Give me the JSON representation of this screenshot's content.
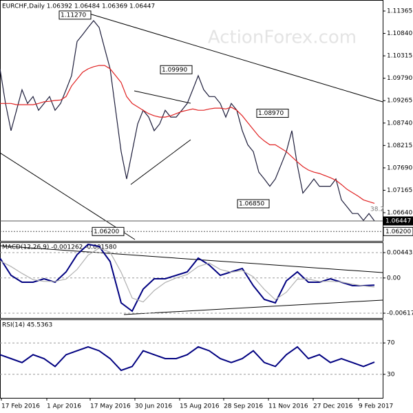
{
  "chart_data": [
    {
      "type": "line",
      "title": "EURCHF,Daily 1.06392 1.06484 1.06369 1.06447",
      "watermark": "ActionForex.com",
      "x": [
        0,
        4,
        8,
        12,
        16,
        20,
        24,
        28,
        32,
        36,
        40,
        44,
        48,
        52,
        56,
        60,
        64,
        68,
        72,
        76,
        80,
        84,
        88,
        92,
        96,
        100,
        104,
        108,
        112,
        116,
        120,
        124,
        128,
        132,
        136,
        140,
        144,
        148,
        152,
        156,
        160,
        164,
        168,
        172,
        176,
        180,
        184,
        188,
        192,
        196,
        200,
        204,
        208,
        212,
        216,
        220,
        224,
        228,
        232,
        236,
        240,
        244,
        248,
        252,
        256,
        260,
        264,
        268,
        272
      ],
      "xlim": [
        0,
        278
      ],
      "ylim": [
        1.05979,
        1.11623
      ],
      "yticks": [
        1.11365,
        {
          "value": 1.1084,
          "label": "1.10840"
        },
        1.10315,
        {
          "value": 1.0979,
          "label": "1.09790"
        },
        1.09265,
        {
          "value": 1.0874,
          "label": "1.08740"
        },
        1.08215,
        {
          "value": 1.0769,
          "label": "1.07690"
        },
        1.07165,
        {
          "value": 1.0664,
          "label": "1.06640"
        }
      ],
      "series": [
        {
          "color": "#1c1c3a",
          "values": [
            1.1001,
            1.092,
            1.0856,
            1.0904,
            1.0952,
            1.092,
            1.0936,
            1.0904,
            1.092,
            1.0936,
            1.0904,
            1.092,
            1.0952,
            1.0985,
            1.1065,
            1.1081,
            1.1098,
            1.1114,
            1.1098,
            1.1049,
            1.1001,
            1.0904,
            1.0807,
            1.0743,
            1.0807,
            1.0872,
            1.0904,
            1.0888,
            1.0856,
            1.0872,
            1.0904,
            1.0888,
            1.0888,
            1.0904,
            1.092,
            1.0952,
            1.0985,
            1.0952,
            1.0936,
            1.0936,
            1.092,
            1.0888,
            1.092,
            1.0904,
            1.0856,
            1.0823,
            1.0807,
            1.0759,
            1.0743,
            1.0726,
            1.0743,
            1.0775,
            1.0807,
            1.0856,
            1.0775,
            1.071,
            1.0726,
            1.0743,
            1.0726,
            1.0726,
            1.0726,
            1.0743,
            1.0694,
            1.0678,
            1.0662,
            1.0662,
            1.0646,
            1.0662,
            1.06447
          ]
        },
        {
          "color": "#e02020",
          "values": [
            1.092,
            1.092,
            1.092,
            1.0917,
            1.0917,
            1.0917,
            1.0917,
            1.092,
            1.0924,
            1.0925,
            1.0927,
            1.0928,
            1.0936,
            1.0961,
            1.0977,
            1.0993,
            1.1001,
            1.1006,
            1.1009,
            1.1009,
            1.1001,
            1.0985,
            1.0969,
            1.0936,
            1.092,
            1.0912,
            1.0904,
            1.0896,
            1.0891,
            1.0888,
            1.0888,
            1.0891,
            1.0896,
            1.0901,
            1.0904,
            1.0907,
            1.0904,
            1.0904,
            1.0907,
            1.0909,
            1.0909,
            1.0907,
            1.0911,
            1.0904,
            1.0891,
            1.0875,
            1.0859,
            1.0843,
            1.0832,
            1.0823,
            1.0823,
            1.0815,
            1.0807,
            1.0795,
            1.0783,
            1.0772,
            1.0764,
            1.0759,
            1.0756,
            1.0751,
            1.0746,
            1.074,
            1.073,
            1.0719,
            1.0711,
            1.0703,
            1.0694,
            1.069,
            1.0686
          ]
        }
      ],
      "annotations": [
        {
          "label": "1.11270",
          "value": 1.1127
        },
        {
          "label": "1.09990",
          "value": 1.0999
        },
        {
          "label": "1.08970",
          "value": 1.0897
        },
        {
          "label": "1.06850",
          "value": 1.0685
        },
        {
          "label": "1.06200",
          "value": 1.062
        },
        {
          "label": "38.2",
          "value": 1.0664
        }
      ],
      "price_labels": [
        {
          "value": 1.06447,
          "label": "1.06447"
        },
        {
          "value": 1.062,
          "label": "1.06200"
        }
      ]
    },
    {
      "type": "line",
      "title": "MACD(12,26,9) -0.001262 -0.001580",
      "x": [
        0,
        8,
        16,
        24,
        32,
        40,
        48,
        56,
        64,
        72,
        80,
        88,
        96,
        104,
        112,
        120,
        128,
        136,
        144,
        152,
        160,
        168,
        176,
        184,
        192,
        200,
        208,
        216,
        224,
        232,
        240,
        248,
        256,
        264,
        272
      ],
      "xlim": [
        0,
        278
      ],
      "ylim": [
        -0.00701,
        0.00624
      ],
      "yticks": [
        0.004435,
        {
          "value": 0,
          "label": "0.00"
        },
        -0.00617
      ],
      "series": [
        {
          "color": "#000080",
          "values": [
            0.00347,
            0.00046,
            -0.00075,
            -0.00075,
            -0.00014,
            -0.00075,
            0.00106,
            0.00408,
            0.00588,
            0.00552,
            0.00287,
            -0.00436,
            -0.00581,
            -0.00195,
            -0.00014,
            -0.00014,
            0.00046,
            0.00106,
            0.00347,
            0.00227,
            0.00046,
            0.00106,
            0.00166,
            -0.00135,
            -0.00376,
            -0.00436,
            -0.00051,
            0.00106,
            -0.00075,
            -0.00075,
            -0.00014,
            -0.00075,
            -0.00135,
            -0.00135,
            -0.00126
          ]
        },
        {
          "color": "#b0b0b0",
          "values": [
            0.003,
            0.002,
            0.0008,
            -0.0003,
            -0.0006,
            -0.0006,
            -0.0002,
            0.0015,
            0.004,
            0.0052,
            0.0045,
            0.001,
            -0.0035,
            -0.0042,
            -0.0022,
            -0.0008,
            0,
            0.0006,
            0.002,
            0.0026,
            0.0015,
            0.001,
            0.0013,
            0.0002,
            -0.002,
            -0.0038,
            -0.0025,
            -0.0002,
            -0.0002,
            -0.0006,
            -0.0006,
            -0.0007,
            -0.0011,
            -0.0014,
            -0.00158
          ]
        }
      ]
    },
    {
      "type": "line",
      "title": "RSI(14) 45.5363",
      "x": [
        0,
        8,
        16,
        24,
        32,
        40,
        48,
        56,
        64,
        72,
        80,
        88,
        96,
        104,
        112,
        120,
        128,
        136,
        144,
        152,
        160,
        168,
        176,
        184,
        192,
        200,
        208,
        216,
        224,
        232,
        240,
        248,
        256,
        264,
        272
      ],
      "xlim": [
        0,
        278
      ],
      "ylim": [
        0,
        100
      ],
      "yticks": [
        70,
        30
      ],
      "xticks": [
        {
          "value": 1,
          "label": "17 Feb 2016"
        },
        {
          "value": 34,
          "label": "1 Apr 2016"
        },
        {
          "value": 65.5,
          "label": "17 May 2016"
        },
        {
          "value": 98,
          "label": "30 Jun 2016"
        },
        {
          "value": 130.5,
          "label": "15 Aug 2016"
        },
        {
          "value": 162.5,
          "label": "28 Sep 2016"
        },
        {
          "value": 195,
          "label": "11 Nov 2016"
        },
        {
          "value": 227.5,
          "label": "27 Dec 2016"
        },
        {
          "value": 260.5,
          "label": "9 Feb 2017"
        }
      ],
      "series": [
        {
          "color": "#000080",
          "values": [
            55,
            50,
            45,
            55,
            50,
            40,
            55,
            60,
            65,
            60,
            50,
            35,
            40,
            60,
            55,
            50,
            50,
            55,
            65,
            60,
            50,
            45,
            50,
            60,
            45,
            40,
            55,
            65,
            50,
            55,
            45,
            50,
            45,
            40,
            45.5363
          ]
        }
      ]
    }
  ]
}
